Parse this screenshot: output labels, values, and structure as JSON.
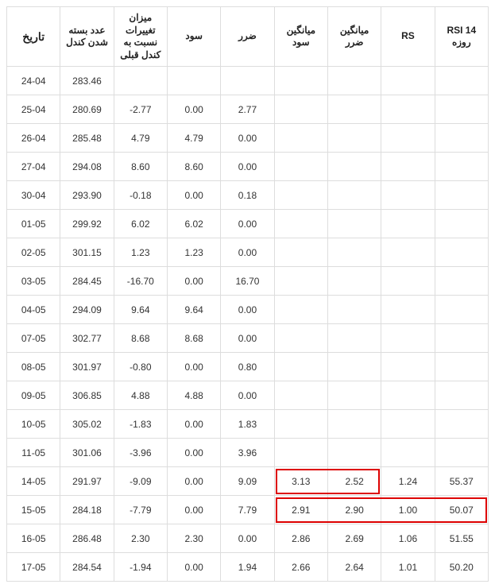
{
  "table": {
    "columns": [
      "تاریخ",
      "عدد بسته شدن کندل",
      "میزان تغییرات نسبت به کندل قبلی",
      "سود",
      "ضرر",
      "میانگین سود",
      "میانگین ضرر",
      "RS",
      "RSI 14 روزه"
    ],
    "rows": [
      [
        "24-04",
        "283.46",
        "",
        "",
        "",
        "",
        "",
        "",
        ""
      ],
      [
        "25-04",
        "280.69",
        "-2.77",
        "0.00",
        "2.77",
        "",
        "",
        "",
        ""
      ],
      [
        "26-04",
        "285.48",
        "4.79",
        "4.79",
        "0.00",
        "",
        "",
        "",
        ""
      ],
      [
        "27-04",
        "294.08",
        "8.60",
        "8.60",
        "0.00",
        "",
        "",
        "",
        ""
      ],
      [
        "30-04",
        "293.90",
        "-0.18",
        "0.00",
        "0.18",
        "",
        "",
        "",
        ""
      ],
      [
        "01-05",
        "299.92",
        "6.02",
        "6.02",
        "0.00",
        "",
        "",
        "",
        ""
      ],
      [
        "02-05",
        "301.15",
        "1.23",
        "1.23",
        "0.00",
        "",
        "",
        "",
        ""
      ],
      [
        "03-05",
        "284.45",
        "-16.70",
        "0.00",
        "16.70",
        "",
        "",
        "",
        ""
      ],
      [
        "04-05",
        "294.09",
        "9.64",
        "9.64",
        "0.00",
        "",
        "",
        "",
        ""
      ],
      [
        "07-05",
        "302.77",
        "8.68",
        "8.68",
        "0.00",
        "",
        "",
        "",
        ""
      ],
      [
        "08-05",
        "301.97",
        "-0.80",
        "0.00",
        "0.80",
        "",
        "",
        "",
        ""
      ],
      [
        "09-05",
        "306.85",
        "4.88",
        "4.88",
        "0.00",
        "",
        "",
        "",
        ""
      ],
      [
        "10-05",
        "305.02",
        "-1.83",
        "0.00",
        "1.83",
        "",
        "",
        "",
        ""
      ],
      [
        "11-05",
        "301.06",
        "-3.96",
        "0.00",
        "3.96",
        "",
        "",
        "",
        ""
      ],
      [
        "14-05",
        "291.97",
        "-9.09",
        "0.00",
        "9.09",
        "3.13",
        "2.52",
        "1.24",
        "55.37"
      ],
      [
        "15-05",
        "284.18",
        "-7.79",
        "0.00",
        "7.79",
        "2.91",
        "2.90",
        "1.00",
        "50.07"
      ],
      [
        "16-05",
        "286.48",
        "2.30",
        "2.30",
        "0.00",
        "2.86",
        "2.69",
        "1.06",
        "51.55"
      ],
      [
        "17-05",
        "284.54",
        "-1.94",
        "0.00",
        "1.94",
        "2.66",
        "2.64",
        "1.01",
        "50.20"
      ]
    ],
    "border_color": "#dddddd",
    "text_color": "#333333",
    "highlight_border": "#dd0000",
    "background_color": "#ffffff",
    "header_fontsize": 12,
    "cell_fontsize": 12,
    "highlights": [
      {
        "row_index": 14,
        "col_start": 5,
        "col_end": 6
      },
      {
        "row_index": 15,
        "col_start": 5,
        "col_end": 8
      }
    ]
  }
}
